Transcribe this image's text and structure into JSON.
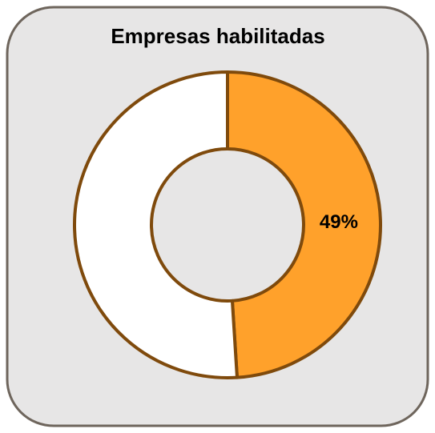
{
  "chart_data": {
    "type": "donut",
    "title": "Empresas habilitadas",
    "values": [
      49,
      51
    ],
    "value_labels": [
      "49%",
      null
    ],
    "colors": [
      "#ffa12b",
      "#ffffff"
    ],
    "edge_color": "#7f4a0c"
  }
}
